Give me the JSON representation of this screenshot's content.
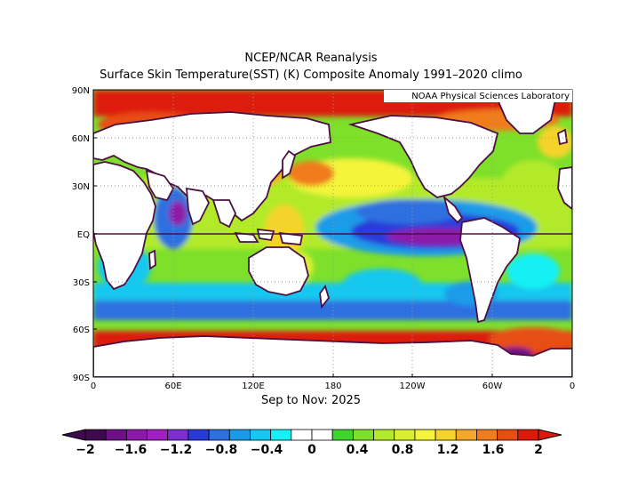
{
  "title": "NCEP/NCAR Reanalysis",
  "subtitle": "Surface Skin Temperature(SST) (K) Composite Anomaly 1991–2020 climo",
  "credit": "NOAA Physical Sciences Laboratory",
  "period": "Sep to Nov: 2025",
  "lat_ticks": [
    "90N",
    "60N",
    "30N",
    "EQ",
    "30S",
    "60S",
    "90S"
  ],
  "lon_ticks": [
    "0",
    "60E",
    "120E",
    "180",
    "120W",
    "60W",
    "0"
  ],
  "colorbar": {
    "labels": [
      "−2",
      "−1.6",
      "−1.2",
      "−0.8",
      "−0.4",
      "0",
      "0.4",
      "0.8",
      "1.2",
      "1.6",
      "2"
    ],
    "colors": [
      "#3d0a4e",
      "#6e1186",
      "#8c1aa8",
      "#a020c0",
      "#7b2fd0",
      "#2a3ad8",
      "#2f6fe0",
      "#1a9be8",
      "#16c7ef",
      "#14f0f4",
      "#ffffff",
      "#ffffff",
      "#3fd42e",
      "#7ee02a",
      "#b2ea2a",
      "#d8f02e",
      "#f4f43a",
      "#f4d42a",
      "#f4a82a",
      "#f07c1e",
      "#e84e12",
      "#dd1a0a"
    ]
  },
  "chart_data": {
    "type": "heatmap",
    "projection": "equirectangular",
    "variable": "Surface Skin Temperature(SST) (K) Composite Anomaly",
    "xlim": [
      0,
      360
    ],
    "ylim": [
      -90,
      90
    ],
    "color_range": [
      -2,
      2
    ],
    "anomaly_regions": [
      {
        "lon": [
          150,
          265
        ],
        "lat": [
          -6,
          6
        ],
        "value": -1.6
      },
      {
        "lon": [
          185,
          250
        ],
        "lat": [
          6,
          18
        ],
        "value": -0.8
      },
      {
        "lon": [
          55,
          65
        ],
        "lat": [
          -10,
          15
        ],
        "value": -1.2
      },
      {
        "lon": [
          140,
          170
        ],
        "lat": [
          25,
          50
        ],
        "value": 1.2
      },
      {
        "lon": [
          175,
          235
        ],
        "lat": [
          25,
          42
        ],
        "value": 1.0
      },
      {
        "lon": [
          125,
          150
        ],
        "lat": [
          -20,
          10
        ],
        "value": 0.8
      },
      {
        "lon": [
          160,
          235
        ],
        "lat": [
          62,
          88
        ],
        "value": 2.0
      },
      {
        "lon": [
          0,
          360
        ],
        "lat": [
          -85,
          -62
        ],
        "value": 2.0
      },
      {
        "lon": [
          0,
          360
        ],
        "lat": [
          -60,
          -45
        ],
        "value": -0.6
      },
      {
        "lon": [
          300,
          345
        ],
        "lat": [
          35,
          60
        ],
        "value": 0.6
      }
    ]
  }
}
